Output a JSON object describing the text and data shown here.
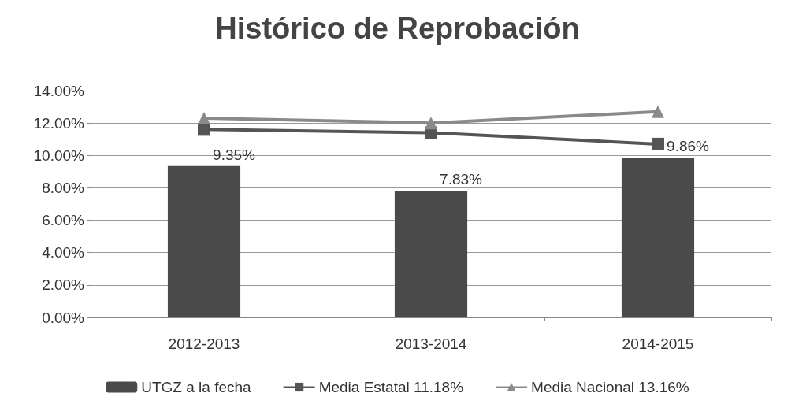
{
  "chart_data": {
    "type": "bar",
    "title": "Histórico de Reprobación",
    "categories": [
      "2012-2013",
      "2013-2014",
      "2014-2015"
    ],
    "series": [
      {
        "name": "UTGZ a la fecha",
        "color": "#4a4a4a",
        "values": [
          9.35,
          7.83,
          9.86
        ],
        "value_labels": [
          "9.35%",
          "7.83%",
          "9.86%"
        ]
      },
      {
        "name": "Media Estatal 11.18%",
        "type": "line",
        "color": "#555555",
        "marker": "square",
        "values": [
          11.6,
          11.4,
          10.7
        ]
      },
      {
        "name": "Media Nacional 13.16%",
        "type": "line",
        "color": "#8a8a8a",
        "marker": "triangle",
        "values": [
          12.3,
          12.0,
          12.7
        ]
      }
    ],
    "ylim": [
      0,
      14
    ],
    "yticks": [
      {
        "value": 0,
        "label": "0.00%"
      },
      {
        "value": 2,
        "label": "2.00%"
      },
      {
        "value": 4,
        "label": "4.00%"
      },
      {
        "value": 6,
        "label": "6.00%"
      },
      {
        "value": 8,
        "label": "8.00%"
      },
      {
        "value": 10,
        "label": "10.00%"
      },
      {
        "value": 12,
        "label": "12.00%"
      },
      {
        "value": 14,
        "label": "14.00%"
      }
    ],
    "grid": "y",
    "legend": "bottom"
  }
}
